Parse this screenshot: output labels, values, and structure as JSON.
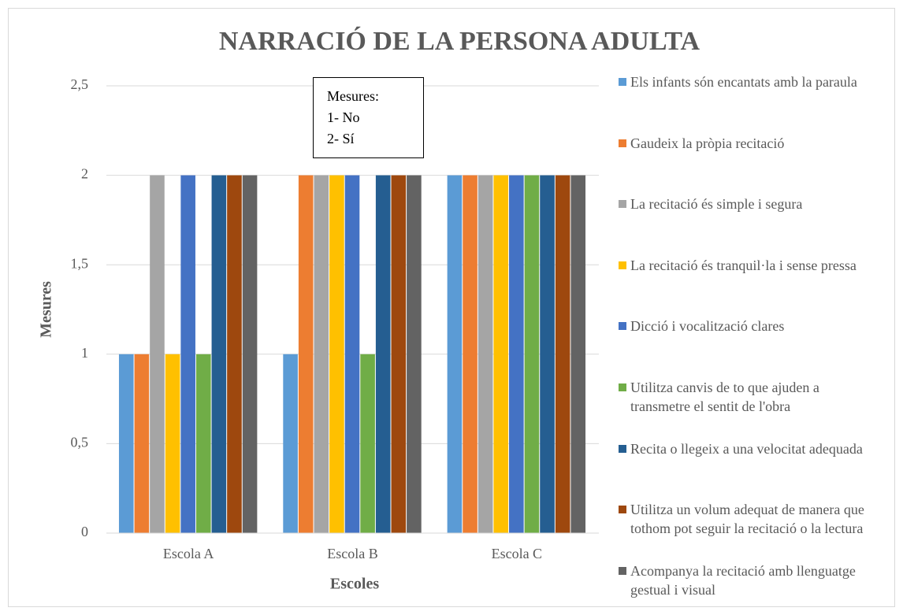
{
  "chart_data": {
    "type": "bar",
    "title": "NARRACIÓ DE LA PERSONA ADULTA",
    "x_label": "Escoles",
    "y_label": "Mesures",
    "categories": [
      "Escola A",
      "Escola B",
      "Escola C"
    ],
    "series": [
      {
        "name": "Els infants són encantats amb la paraula",
        "color": "#5b9bd5",
        "values": [
          1,
          1,
          2
        ]
      },
      {
        "name": "Gaudeix la pròpia recitació",
        "color": "#ed7d31",
        "values": [
          1,
          2,
          2
        ]
      },
      {
        "name": "La recitació és simple i segura",
        "color": "#a5a5a5",
        "values": [
          2,
          2,
          2
        ]
      },
      {
        "name": "La recitació és tranquil·la i sense pressa",
        "color": "#ffc000",
        "values": [
          1,
          2,
          2
        ]
      },
      {
        "name": "Dicció i vocalització clares",
        "color": "#4472c4",
        "values": [
          2,
          2,
          2
        ]
      },
      {
        "name": "Utilitza canvis de to que ajuden a transmetre el sentit de l'obra",
        "color": "#70ad47",
        "values": [
          1,
          1,
          2
        ]
      },
      {
        "name": "Recita o llegeix a una velocitat adequada",
        "color": "#255e91",
        "values": [
          2,
          2,
          2
        ]
      },
      {
        "name": "Utilitza un volum adequat de manera que tothom pot seguir la recitació o la lectura",
        "color": "#9e480e",
        "values": [
          2,
          2,
          2
        ]
      },
      {
        "name": "Acompanya la recitació amb llenguatge gestual i visual",
        "color": "#636363",
        "values": [
          2,
          2,
          2
        ]
      }
    ],
    "ylim": [
      0,
      2.5
    ],
    "yticks": [
      0,
      {
        "value": 0.5,
        "label": "0,5"
      },
      1,
      {
        "value": 1.5,
        "label": "1,5"
      },
      2,
      {
        "value": 2.5,
        "label": "2,5"
      }
    ],
    "grid": true,
    "legend": "right",
    "annotation": [
      "Mesures:",
      "1- No",
      "2- Sí"
    ]
  }
}
